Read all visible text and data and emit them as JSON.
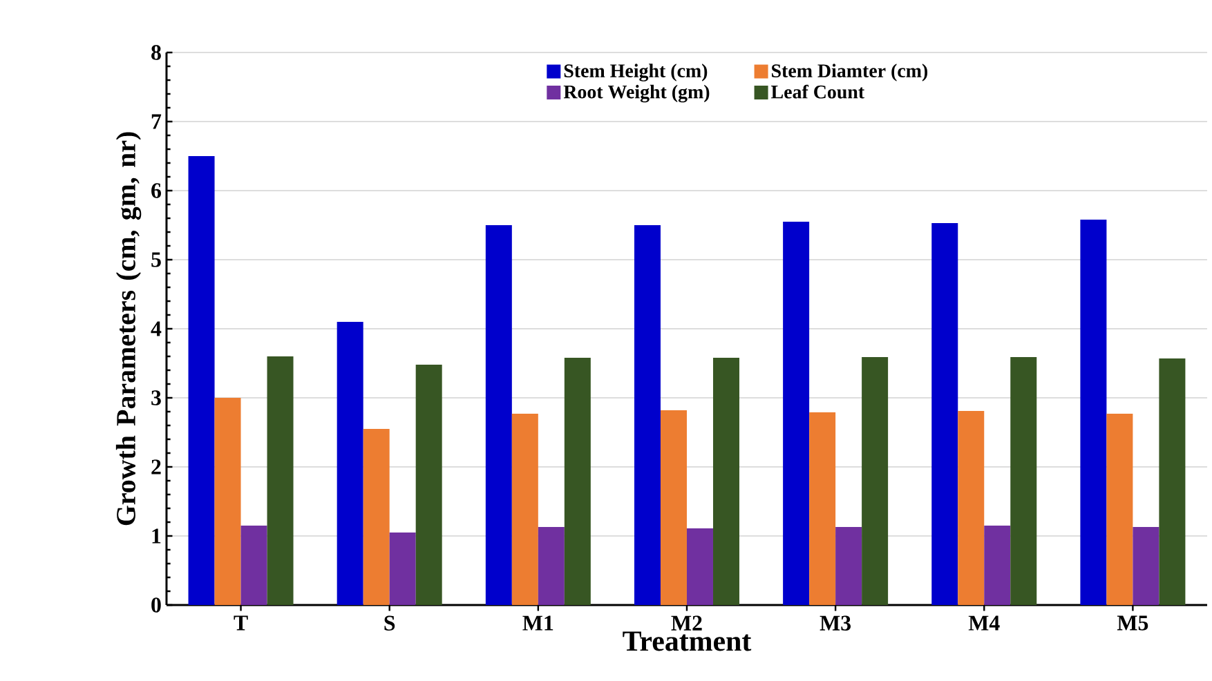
{
  "chart_data": {
    "type": "bar",
    "xlabel": "Treatment",
    "ylabel": "Growth Parameters (cm, gm, nr)",
    "categories": [
      "T",
      "S",
      "M1",
      "M2",
      "M3",
      "M4",
      "M5"
    ],
    "series": [
      {
        "name": "Stem Height (cm)",
        "color": "#0000cc",
        "values": [
          6.5,
          4.1,
          5.5,
          5.5,
          5.55,
          5.53,
          5.58
        ]
      },
      {
        "name": "Stem Diamter (cm)",
        "color": "#ed7d31",
        "values": [
          3.0,
          2.55,
          2.77,
          2.82,
          2.79,
          2.81,
          2.77
        ]
      },
      {
        "name": "Root Weight (gm)",
        "color": "#7030a0",
        "values": [
          1.15,
          1.05,
          1.13,
          1.11,
          1.13,
          1.15,
          1.13
        ]
      },
      {
        "name": "Leaf Count",
        "color": "#375623",
        "values": [
          3.6,
          3.48,
          3.58,
          3.58,
          3.59,
          3.59,
          3.57
        ]
      }
    ],
    "ylim": [
      0,
      8
    ],
    "yticks": [
      0,
      1,
      2,
      3,
      4,
      5,
      6,
      7,
      8
    ],
    "grid": "y",
    "legend": "top"
  }
}
